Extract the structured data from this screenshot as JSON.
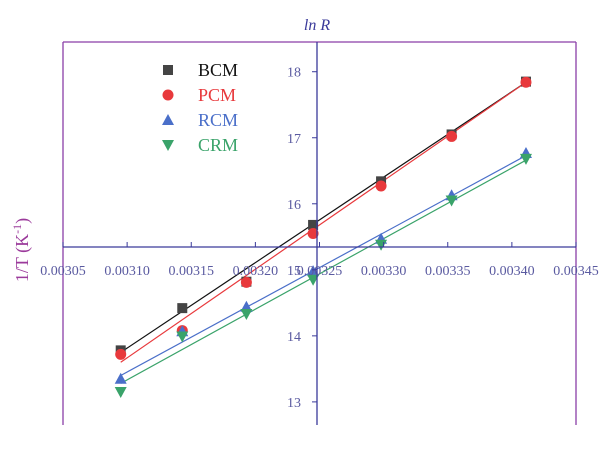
{
  "chart_data": {
    "type": "scatter",
    "title": "ln R",
    "xlabel": "",
    "ylabel": "1/T (K-1)",
    "xlim": [
      0.00305,
      0.00345
    ],
    "ylim": [
      12.65,
      18.45
    ],
    "x_ticks": [
      "0.00305",
      "0.00310",
      "0.00315",
      "0.00320",
      "0.00325",
      "0.00330",
      "0.00335",
      "0.00340",
      "0.00345"
    ],
    "y_ticks": [
      "13",
      "14",
      "15",
      "16",
      "17",
      "18"
    ],
    "legend_position": "top-left",
    "grid": false,
    "series": [
      {
        "name": "BCM",
        "marker": "square",
        "color": "#444444",
        "fit_color": "#111111",
        "x": [
          0.003095,
          0.003143,
          0.003193,
          0.003245,
          0.003298,
          0.003353,
          0.003411
        ],
        "y": [
          13.78,
          14.42,
          14.82,
          15.68,
          16.34,
          17.05,
          17.85
        ],
        "fit": [
          [
            0.003095,
            13.75
          ],
          [
            0.003411,
            17.84
          ]
        ]
      },
      {
        "name": "PCM",
        "marker": "circle",
        "color": "#e8393c",
        "fit_color": "#e8393c",
        "x": [
          0.003095,
          0.003143,
          0.003193,
          0.003245,
          0.003298,
          0.003353,
          0.003411
        ],
        "y": [
          13.72,
          14.08,
          14.81,
          15.55,
          16.27,
          17.02,
          17.84
        ],
        "fit": [
          [
            0.003095,
            13.6
          ],
          [
            0.003411,
            17.84
          ]
        ]
      },
      {
        "name": "RCM",
        "marker": "triangle-up",
        "color": "#4a6fc9",
        "fit_color": "#4a6fc9",
        "x": [
          0.003095,
          0.003143,
          0.003193,
          0.003245,
          0.003298,
          0.003353,
          0.003411
        ],
        "y": [
          13.35,
          14.07,
          14.44,
          14.98,
          15.47,
          16.13,
          16.77
        ],
        "fit": [
          [
            0.003095,
            13.4
          ],
          [
            0.003411,
            16.73
          ]
        ]
      },
      {
        "name": "CRM",
        "marker": "triangle-down",
        "color": "#3aa36a",
        "fit_color": "#3aa36a",
        "x": [
          0.003095,
          0.003143,
          0.003193,
          0.003245,
          0.003298,
          0.003353,
          0.003411
        ],
        "y": [
          13.15,
          13.99,
          14.33,
          14.85,
          15.38,
          16.05,
          16.68
        ],
        "fit": [
          [
            0.003095,
            13.28
          ],
          [
            0.003411,
            16.66
          ]
        ]
      }
    ]
  }
}
